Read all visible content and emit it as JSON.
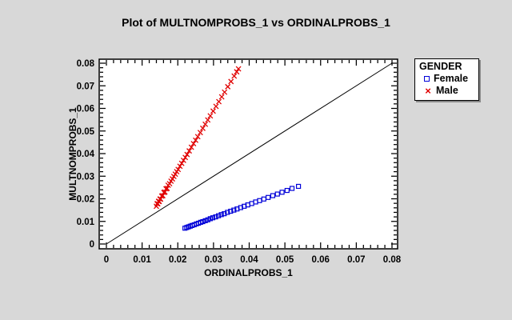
{
  "window": {
    "background_color": "#d8d8d8"
  },
  "chart": {
    "title": "Plot of MULTNOMPROBS_1 vs ORDINALPROBS_1",
    "xlabel": "ORDINALPROBS_1",
    "ylabel": "MULTNOMPROBS_1"
  },
  "legend": {
    "title": "GENDER",
    "items": [
      {
        "label": "Female",
        "marker": "open-square",
        "glyph": "",
        "color": "#0000d8"
      },
      {
        "label": "Male",
        "marker": "cross",
        "glyph": "×",
        "color": "#e00000"
      }
    ]
  },
  "chart_data": {
    "type": "scatter",
    "title": "Plot of MULTNOMPROBS_1 vs ORDINALPROBS_1",
    "xlabel": "ORDINALPROBS_1",
    "ylabel": "MULTNOMPROBS_1",
    "xlim": [
      0,
      0.08
    ],
    "ylim": [
      0,
      0.08
    ],
    "x_ticks": [
      0,
      0.01,
      0.02,
      0.03,
      0.04,
      0.05,
      0.06,
      0.07,
      0.08
    ],
    "y_ticks": [
      0,
      0.01,
      0.02,
      0.03,
      0.04,
      0.05,
      0.06,
      0.07,
      0.08
    ],
    "x_tick_labels": [
      "0",
      "0.01",
      "0.02",
      "0.03",
      "0.04",
      "0.05",
      "0.06",
      "0.07",
      "0.08"
    ],
    "y_tick_labels": [
      "0",
      "0.01",
      "0.02",
      "0.03",
      "0.04",
      "0.05",
      "0.06",
      "0.07",
      "0.08"
    ],
    "minor_tick_step": 0.002,
    "grid": false,
    "legend_position": "outside-top-right",
    "frame_color": "#000000",
    "plot_bg_color": "#ffffff",
    "reference_line": {
      "from": [
        0,
        0
      ],
      "to": [
        0.08,
        0.08
      ],
      "color": "#000000"
    },
    "series": [
      {
        "name": "Female",
        "marker": "open-square",
        "color": "#0000d8",
        "points": [
          [
            0.022,
            0.007
          ],
          [
            0.0225,
            0.0073
          ],
          [
            0.023,
            0.0076
          ],
          [
            0.0235,
            0.0079
          ],
          [
            0.024,
            0.0082
          ],
          [
            0.0246,
            0.0085
          ],
          [
            0.0252,
            0.0089
          ],
          [
            0.0258,
            0.0092
          ],
          [
            0.0264,
            0.0096
          ],
          [
            0.027,
            0.0099
          ],
          [
            0.0277,
            0.0103
          ],
          [
            0.0284,
            0.0107
          ],
          [
            0.0291,
            0.0112
          ],
          [
            0.0298,
            0.0116
          ],
          [
            0.0306,
            0.012
          ],
          [
            0.0314,
            0.0125
          ],
          [
            0.0322,
            0.013
          ],
          [
            0.033,
            0.0134
          ],
          [
            0.0339,
            0.014
          ],
          [
            0.0348,
            0.0145
          ],
          [
            0.0357,
            0.015
          ],
          [
            0.0366,
            0.0155
          ],
          [
            0.0376,
            0.0161
          ],
          [
            0.0386,
            0.0167
          ],
          [
            0.0396,
            0.0173
          ],
          [
            0.0407,
            0.0179
          ],
          [
            0.0418,
            0.0186
          ],
          [
            0.0429,
            0.0192
          ],
          [
            0.0441,
            0.0199
          ],
          [
            0.0453,
            0.0206
          ],
          [
            0.0466,
            0.0214
          ],
          [
            0.0479,
            0.0221
          ],
          [
            0.0492,
            0.0229
          ],
          [
            0.0506,
            0.0237
          ],
          [
            0.052,
            0.0246
          ],
          [
            0.0538,
            0.0255
          ]
        ]
      },
      {
        "name": "Male",
        "marker": "cross",
        "color": "#e00000",
        "points": [
          [
            0.014,
            0.0167
          ],
          [
            0.0142,
            0.0178
          ],
          [
            0.0144,
            0.0178
          ],
          [
            0.0146,
            0.0189
          ],
          [
            0.0148,
            0.0188
          ],
          [
            0.015,
            0.0199
          ],
          [
            0.0152,
            0.0199
          ],
          [
            0.0155,
            0.0212
          ],
          [
            0.0158,
            0.0214
          ],
          [
            0.0161,
            0.0228
          ],
          [
            0.0164,
            0.023
          ],
          [
            0.0167,
            0.0244
          ],
          [
            0.017,
            0.0246
          ],
          [
            0.0173,
            0.026
          ],
          [
            0.0177,
            0.0267
          ],
          [
            0.0181,
            0.0278
          ],
          [
            0.0185,
            0.0288
          ],
          [
            0.0189,
            0.0299
          ],
          [
            0.0193,
            0.0309
          ],
          [
            0.0197,
            0.032
          ],
          [
            0.0201,
            0.033
          ],
          [
            0.0206,
            0.0344
          ],
          [
            0.0211,
            0.0357
          ],
          [
            0.0216,
            0.037
          ],
          [
            0.0221,
            0.0383
          ],
          [
            0.0226,
            0.0396
          ],
          [
            0.0232,
            0.0412
          ],
          [
            0.0238,
            0.0428
          ],
          [
            0.0244,
            0.0444
          ],
          [
            0.025,
            0.0459
          ],
          [
            0.0256,
            0.0475
          ],
          [
            0.0263,
            0.0493
          ],
          [
            0.027,
            0.0512
          ],
          [
            0.0277,
            0.053
          ],
          [
            0.0284,
            0.0549
          ],
          [
            0.0291,
            0.0567
          ],
          [
            0.0299,
            0.0588
          ],
          [
            0.0307,
            0.0609
          ],
          [
            0.0315,
            0.063
          ],
          [
            0.0323,
            0.0651
          ],
          [
            0.0331,
            0.0672
          ],
          [
            0.034,
            0.0696
          ],
          [
            0.0349,
            0.0719
          ],
          [
            0.0358,
            0.0743
          ],
          [
            0.0365,
            0.0762
          ],
          [
            0.037,
            0.0775
          ]
        ]
      }
    ]
  }
}
